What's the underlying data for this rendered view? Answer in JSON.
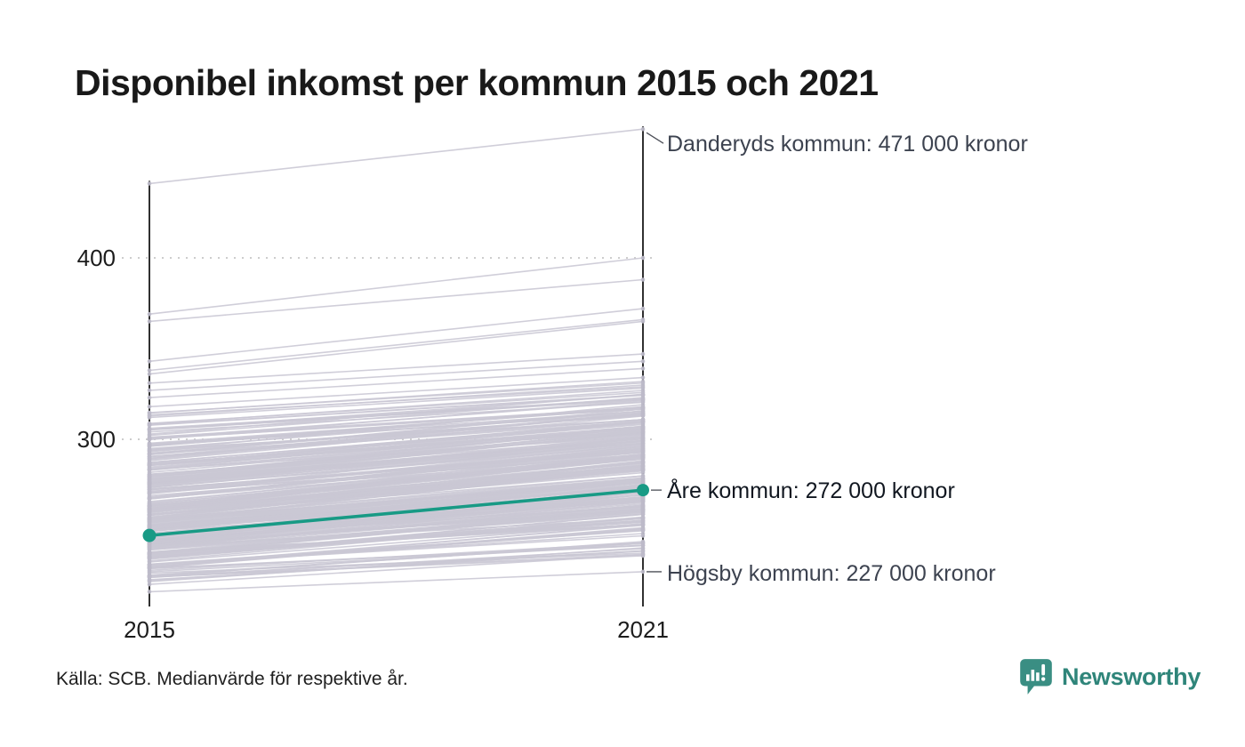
{
  "title": "Disponibel inkomst per kommun 2015 och 2021",
  "source": "Källa: SCB. Medianvärde för respektive år.",
  "logo": {
    "name": "Newsworthy",
    "icon_color": "#3a8e83",
    "text_color": "#2f857a"
  },
  "chart_data": {
    "type": "slope",
    "x_categories": [
      "2015",
      "2021"
    ],
    "y_ticks": [
      {
        "value": 400,
        "label": "400"
      },
      {
        "value": 300,
        "label": "300"
      }
    ],
    "grid": "dotted-horizontal",
    "legend": "none",
    "units": "tusen kronor (x 1000 kronor)",
    "highlight": {
      "name": "Åre kommun",
      "values": [
        247,
        272
      ],
      "label": "Åre kommun: 272 000 kronor",
      "color": "#189a85"
    },
    "annotations": [
      {
        "name": "Danderyds kommun",
        "values": [
          441,
          471
        ],
        "label": "Danderyds kommun: 471 000 kronor",
        "label_dy": 17
      },
      {
        "name": "Högsby kommun",
        "values": [
          216,
          227
        ],
        "label": "Högsby kommun: 227 000 kronor",
        "label_dy": 2
      }
    ],
    "highlight_label_dy": 1,
    "line_color": "#c9c7d4",
    "dot_color": "#bcbac9",
    "axis_color": "#1a1a1a",
    "leader_color": "#4c4f57",
    "background_lines": [
      [
        369,
        400
      ],
      [
        365,
        388
      ],
      [
        343,
        372
      ],
      [
        338,
        366
      ],
      [
        336,
        365
      ],
      [
        331,
        347
      ],
      [
        327,
        343
      ],
      [
        323,
        339
      ],
      [
        318,
        334
      ]
    ],
    "band_segments": [
      {
        "count": 10,
        "v2015": [
          306,
          316
        ],
        "gain": [
          14,
          19
        ]
      },
      {
        "count": 20,
        "v2015": [
          294,
          306
        ],
        "gain": [
          16,
          23
        ]
      },
      {
        "count": 30,
        "v2015": [
          282,
          294
        ],
        "gain": [
          18,
          26
        ]
      },
      {
        "count": 45,
        "v2015": [
          268,
          282
        ],
        "gain": [
          20,
          28
        ]
      },
      {
        "count": 62,
        "v2015": [
          254,
          268
        ],
        "gain": [
          20,
          30
        ]
      },
      {
        "count": 64,
        "v2015": [
          241,
          254
        ],
        "gain": [
          18,
          28
        ]
      },
      {
        "count": 42,
        "v2015": [
          229,
          241
        ],
        "gain": [
          15,
          25
        ]
      },
      {
        "count": 16,
        "v2015": [
          217,
          229
        ],
        "gain": [
          11,
          20
        ]
      }
    ],
    "seed": 42
  }
}
